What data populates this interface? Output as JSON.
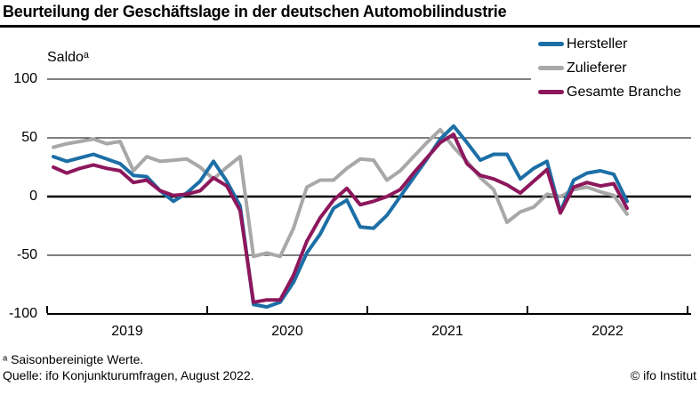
{
  "title": "Beurteilung der Geschäftslage in der deutschen Automobilindustrie",
  "y_axis_label": "Saldoᵃ",
  "footnotes": {
    "line1": "ᵃ Saisonbereinigte Werte.",
    "line2": "Quelle: ifo Konjunkturumfragen, August 2022."
  },
  "copyright": "© ifo Institut",
  "chart_data": {
    "type": "line",
    "title": "Beurteilung der Geschäftslage in der deutschen Automobilindustrie",
    "ylabel": "Saldoᵃ",
    "ylim": [
      -100,
      100
    ],
    "yticks": [
      "100",
      "50",
      "0",
      "-50",
      "-100"
    ],
    "x_tick_labels": [
      "2019",
      "2020",
      "2021",
      "2022"
    ],
    "grid": "horizontal",
    "legend_position": "top-right",
    "x": [
      "2019-01",
      "2019-02",
      "2019-03",
      "2019-04",
      "2019-05",
      "2019-06",
      "2019-07",
      "2019-08",
      "2019-09",
      "2019-10",
      "2019-11",
      "2019-12",
      "2020-01",
      "2020-02",
      "2020-03",
      "2020-04",
      "2020-05",
      "2020-06",
      "2020-07",
      "2020-08",
      "2020-09",
      "2020-10",
      "2020-11",
      "2020-12",
      "2021-01",
      "2021-02",
      "2021-03",
      "2021-04",
      "2021-05",
      "2021-06",
      "2021-07",
      "2021-08",
      "2021-09",
      "2021-10",
      "2021-11",
      "2021-12",
      "2022-01",
      "2022-02",
      "2022-03",
      "2022-04",
      "2022-05",
      "2022-06",
      "2022-07",
      "2022-08"
    ],
    "series": [
      {
        "name": "Hersteller",
        "color": "#1c6fa6",
        "values": [
          34,
          30,
          33,
          36,
          32,
          28,
          18,
          17,
          5,
          -4,
          3,
          13,
          30,
          13,
          -8,
          -92,
          -94,
          -90,
          -73,
          -48,
          -32,
          -10,
          -3,
          -26,
          -27,
          -16,
          0,
          16,
          32,
          49,
          60,
          46,
          31,
          36,
          36,
          15,
          24,
          30,
          -13,
          14,
          20,
          22,
          19,
          -4
        ]
      },
      {
        "name": "Zulieferer",
        "color": "#a8a8a8",
        "values": [
          42,
          45,
          47,
          49,
          45,
          47,
          22,
          34,
          30,
          31,
          32,
          25,
          15,
          25,
          34,
          -51,
          -48,
          -51,
          -27,
          8,
          14,
          14,
          24,
          32,
          31,
          14,
          22,
          34,
          46,
          57,
          42,
          30,
          16,
          6,
          -22,
          -13,
          -9,
          2,
          0,
          6,
          8,
          4,
          1,
          -15
        ]
      },
      {
        "name": "Gesamte Branche",
        "color": "#8d175c",
        "values": [
          25,
          20,
          24,
          27,
          24,
          22,
          12,
          14,
          5,
          1,
          2,
          5,
          16,
          9,
          -12,
          -90,
          -88,
          -88,
          -67,
          -38,
          -18,
          -3,
          7,
          -7,
          -4,
          0,
          6,
          20,
          33,
          46,
          53,
          28,
          18,
          15,
          10,
          3,
          13,
          23,
          -14,
          8,
          12,
          9,
          11,
          -10
        ]
      }
    ]
  }
}
